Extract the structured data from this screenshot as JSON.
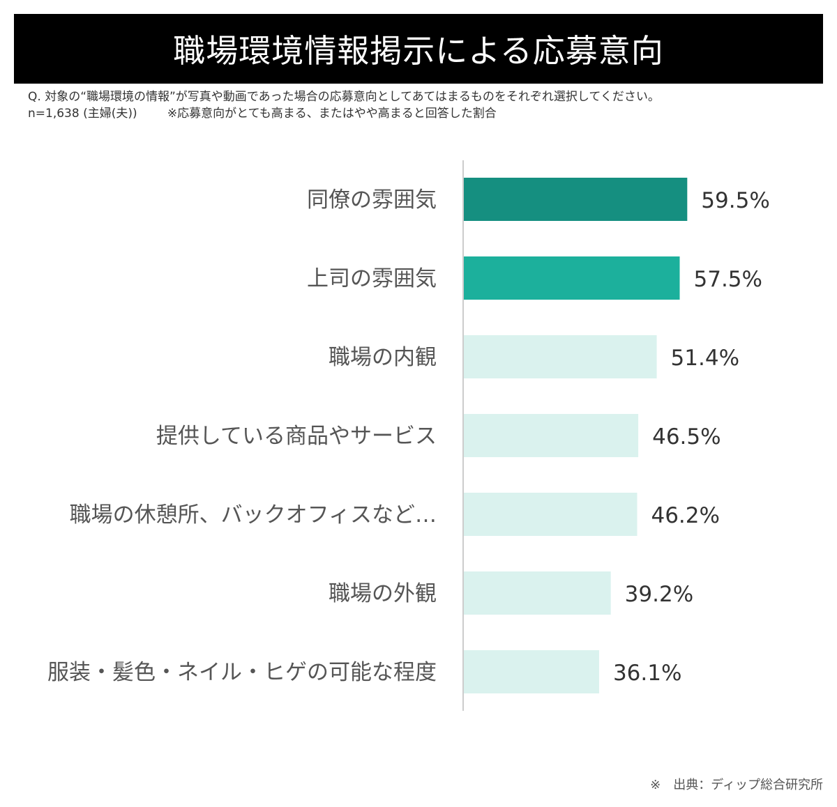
{
  "title": "職場環境情報掲示による応募意向",
  "question": "Q.  対象の“職場環境の情報”が写真や動画であった場合の応募意向としてあてはまるものをそれぞれ選択してください。",
  "sample": "n=1,638 (主婦(夫))",
  "note": "※応募意向がとても高まる、またはやや高まると回答した割合",
  "source": "※　出典：ディップ総合研究所",
  "colors": {
    "top1": "#158f80",
    "top2": "#1cb09c",
    "rest": "#daf2ee",
    "axis": "#cccccc",
    "label": "#555555",
    "value": "#333333"
  },
  "chart_data": {
    "type": "bar",
    "orientation": "horizontal",
    "title": "職場環境情報掲示による応募意向",
    "categories": [
      "同僚の雰囲気",
      "上司の雰囲気",
      "職場の内観",
      "提供している商品やサービス",
      "職場の休憩所、バックオフィスなど…",
      "職場の外観",
      "服装・髪色・ネイル・ヒゲの可能な程度"
    ],
    "values": [
      59.5,
      57.5,
      51.4,
      46.5,
      46.2,
      39.2,
      36.1
    ],
    "value_labels": [
      "59.5%",
      "57.5%",
      "51.4%",
      "46.5%",
      "46.2%",
      "39.2%",
      "36.1%"
    ],
    "unit": "%",
    "xlim": [
      0,
      100
    ],
    "grid": false,
    "legend": "none"
  }
}
